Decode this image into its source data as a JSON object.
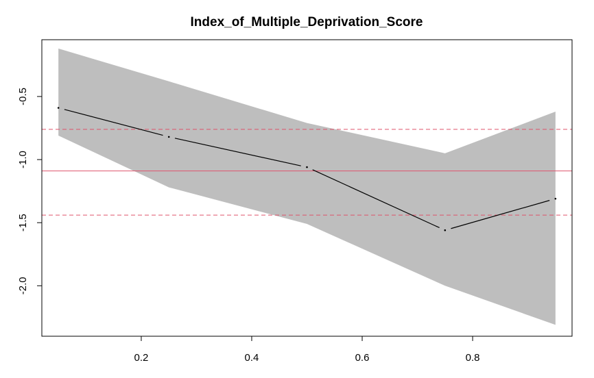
{
  "chart_data": {
    "type": "line",
    "title": "Index_of_Multiple_Deprivation_Score",
    "xlabel": "",
    "ylabel": "",
    "xlim": [
      0.02,
      0.98
    ],
    "ylim": [
      -2.4,
      -0.05
    ],
    "x_ticks": [
      0.2,
      0.4,
      0.6,
      0.8
    ],
    "x_tick_labels": [
      "0.2",
      "0.4",
      "0.6",
      "0.8"
    ],
    "y_ticks": [
      -2.0,
      -1.5,
      -1.0,
      -0.5
    ],
    "y_tick_labels": [
      "-2.0",
      "-1.5",
      "-1.0",
      "-0.5"
    ],
    "grid": false,
    "series": [
      {
        "x": [
          0.05,
          0.25,
          0.5,
          0.75,
          0.95
        ],
        "values": [
          -0.59,
          -0.82,
          -1.06,
          -1.56,
          -1.31
        ],
        "lower": [
          -0.81,
          -1.22,
          -1.51,
          -2.0,
          -2.31
        ],
        "upper": [
          -0.12,
          -0.38,
          -0.71,
          -0.95,
          -0.62
        ]
      }
    ],
    "reference_lines": [
      {
        "y": -1.09,
        "style": "solid"
      },
      {
        "y": -0.76,
        "style": "dashed"
      },
      {
        "y": -1.44,
        "style": "dashed"
      }
    ],
    "colors": {
      "band": "#bebebe",
      "line": "#000000",
      "reference": "#df536b",
      "axis": "#000000"
    }
  }
}
